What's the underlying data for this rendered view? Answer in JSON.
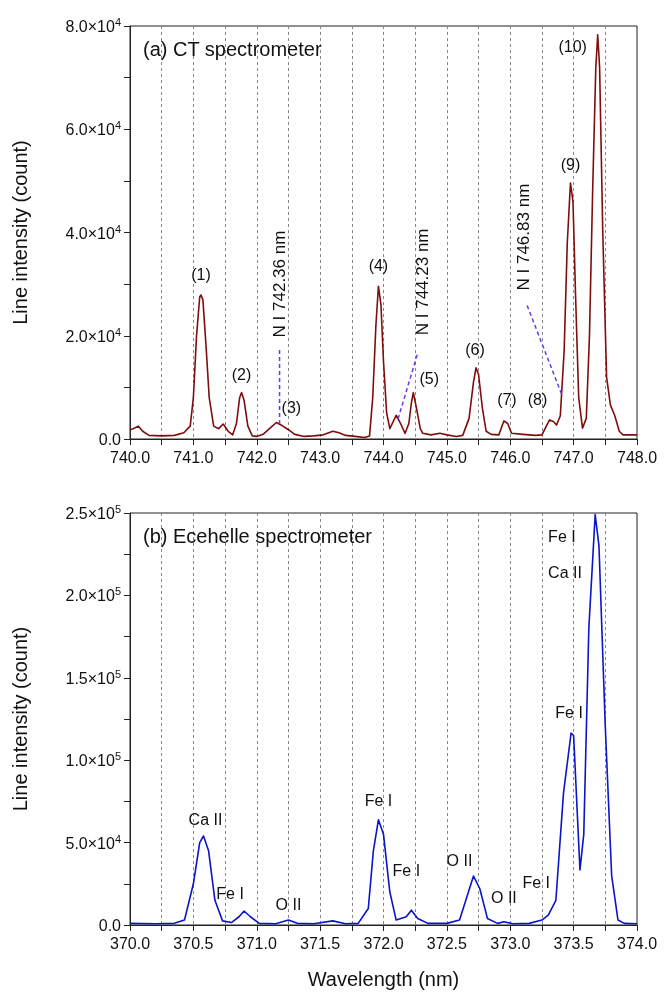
{
  "chart_data": [
    {
      "type": "line",
      "title": "(a) CT spectrometer",
      "ylabel": "Line intensity (count)",
      "grid": "x",
      "xlim": [
        740,
        748
      ],
      "ylim": [
        0,
        80000
      ],
      "xticks": [
        {
          "value": 740,
          "label": "740.0"
        },
        {
          "value": 740.5,
          "label": null
        },
        {
          "value": 741,
          "label": "741.0"
        },
        {
          "value": 741.5,
          "label": null
        },
        {
          "value": 742,
          "label": "742.0"
        },
        {
          "value": 742.5,
          "label": null
        },
        {
          "value": 743,
          "label": "743.0"
        },
        {
          "value": 743.5,
          "label": null
        },
        {
          "value": 744,
          "label": "744.0"
        },
        {
          "value": 744.5,
          "label": null
        },
        {
          "value": 745,
          "label": "745.0"
        },
        {
          "value": 745.5,
          "label": null
        },
        {
          "value": 746,
          "label": "746.0"
        },
        {
          "value": 746.5,
          "label": null
        },
        {
          "value": 747,
          "label": "747.0"
        },
        {
          "value": 747.5,
          "label": null
        },
        {
          "value": 748,
          "label": "748.0"
        }
      ],
      "yticks": [
        {
          "value": 0,
          "label": "0.0"
        },
        {
          "value": 10000,
          "label": null
        },
        {
          "value": 20000,
          "label": "2.0×10$^{4}$"
        },
        {
          "value": 30000,
          "label": null
        },
        {
          "value": 40000,
          "label": "4.0×10$^{4}$"
        },
        {
          "value": 50000,
          "label": null
        },
        {
          "value": 60000,
          "label": "6.0×10$^{4}$"
        },
        {
          "value": 70000,
          "label": null
        },
        {
          "value": 80000,
          "label": "8.0×10$^{4}$"
        }
      ],
      "x": [
        740.0,
        740.05,
        740.13,
        740.2,
        740.3,
        740.5,
        740.7,
        740.85,
        740.95,
        741.0,
        741.05,
        741.1,
        741.12,
        741.15,
        741.2,
        741.25,
        741.32,
        741.4,
        741.47,
        741.55,
        741.62,
        741.68,
        741.73,
        741.76,
        741.8,
        741.86,
        741.93,
        742.0,
        742.1,
        742.2,
        742.31,
        742.4,
        742.5,
        742.6,
        742.75,
        742.9,
        743.05,
        743.2,
        743.3,
        743.4,
        743.55,
        743.7,
        743.78,
        743.83,
        743.88,
        743.92,
        743.96,
        744.0,
        744.05,
        744.1,
        744.2,
        744.27,
        744.34,
        744.4,
        744.44,
        744.47,
        744.52,
        744.58,
        744.62,
        744.75,
        744.89,
        745.0,
        745.15,
        745.25,
        745.35,
        745.42,
        745.46,
        745.5,
        745.56,
        745.62,
        745.7,
        745.82,
        745.87,
        745.9,
        745.96,
        746.02,
        746.2,
        746.4,
        746.5,
        746.57,
        746.62,
        746.68,
        746.73,
        746.79,
        746.85,
        746.9,
        746.95,
        746.99,
        747.03,
        747.08,
        747.14,
        747.2,
        747.25,
        747.3,
        747.35,
        747.38,
        747.41,
        747.46,
        747.52,
        747.58,
        747.65,
        747.72,
        747.78,
        747.9,
        748.0
      ],
      "series": [
        {
          "color": "#7f0d0d",
          "values": [
            1800,
            2000,
            2500,
            1500,
            700,
            600,
            700,
            1200,
            2500,
            8000,
            20000,
            27500,
            27900,
            27000,
            18000,
            8000,
            2500,
            2000,
            2900,
            1500,
            800,
            3000,
            8000,
            9000,
            7500,
            2500,
            600,
            500,
            900,
            2000,
            3200,
            2600,
            1800,
            900,
            500,
            600,
            800,
            1500,
            1200,
            700,
            500,
            300,
            600,
            8000,
            22000,
            29600,
            26000,
            15000,
            5000,
            2000,
            4600,
            3000,
            1100,
            3000,
            7000,
            9000,
            6000,
            2000,
            1100,
            800,
            1100,
            800,
            500,
            700,
            4000,
            11000,
            13800,
            12500,
            6000,
            1500,
            900,
            800,
            2500,
            3500,
            3000,
            1100,
            900,
            700,
            800,
            2500,
            3700,
            3400,
            2700,
            4500,
            17000,
            38000,
            49600,
            46000,
            28000,
            8000,
            2100,
            4000,
            20000,
            48000,
            72000,
            78300,
            72000,
            40000,
            12000,
            6600,
            4500,
            1500,
            800,
            800,
            800
          ]
        }
      ],
      "annotations": [
        {
          "text": "(1)",
          "x": 741.12,
          "y": 27900
        },
        {
          "text": "(2)",
          "x": 741.76,
          "y": 9000
        },
        {
          "text": "(3)",
          "x": 742.31,
          "y": 3200
        },
        {
          "text": "(4)",
          "x": 743.92,
          "y": 29600
        },
        {
          "text": "(5)",
          "x": 744.47,
          "y": 9000
        },
        {
          "text": "(6)",
          "x": 745.46,
          "y": 13800
        },
        {
          "text": "(7)",
          "x": 745.9,
          "y": 3500
        },
        {
          "text": "(8)",
          "x": 746.62,
          "y": 3700
        },
        {
          "text": "(9)",
          "x": 746.95,
          "y": 49600
        },
        {
          "text": "(10)",
          "x": 747.38,
          "y": 78300
        },
        {
          "text": "N I 742.36 nm",
          "x": 742.36,
          "y": 2900
        },
        {
          "text": "N I 744.23 nm",
          "x": 744.23,
          "y": 3900
        },
        {
          "text": "N I 746.83 nm",
          "x": 746.81,
          "y": 8700
        }
      ]
    },
    {
      "type": "line",
      "title": "(b) Ecehelle spectrometer",
      "xlabel": "Wavelength (nm)",
      "ylabel": "Line intensity (count)",
      "grid": "x",
      "xlim": [
        370,
        374
      ],
      "ylim": [
        0,
        250000
      ],
      "xticks": [
        {
          "value": 370,
          "label": "370.0"
        },
        {
          "value": 370.25,
          "label": null
        },
        {
          "value": 370.5,
          "label": "370.5"
        },
        {
          "value": 370.75,
          "label": null
        },
        {
          "value": 371,
          "label": "371.0"
        },
        {
          "value": 371.25,
          "label": null
        },
        {
          "value": 371.5,
          "label": "371.5"
        },
        {
          "value": 371.75,
          "label": null
        },
        {
          "value": 372,
          "label": "372.0"
        },
        {
          "value": 372.25,
          "label": null
        },
        {
          "value": 372.5,
          "label": "372.5"
        },
        {
          "value": 372.75,
          "label": null
        },
        {
          "value": 373,
          "label": "373.0"
        },
        {
          "value": 373.25,
          "label": null
        },
        {
          "value": 373.5,
          "label": "373.5"
        },
        {
          "value": 373.75,
          "label": null
        },
        {
          "value": 374,
          "label": "374.0"
        }
      ],
      "yticks": [
        {
          "value": 0,
          "label": "0.0"
        },
        {
          "value": 25000,
          "label": null
        },
        {
          "value": 50000,
          "label": "5.0×10$^{4}$"
        },
        {
          "value": 75000,
          "label": null
        },
        {
          "value": 100000,
          "label": "1.0×10$^{5}$"
        },
        {
          "value": 125000,
          "label": null
        },
        {
          "value": 150000,
          "label": "1.5×10$^{5}$"
        },
        {
          "value": 175000,
          "label": null
        },
        {
          "value": 200000,
          "label": "2.0×10$^{5}$"
        },
        {
          "value": 225000,
          "label": null
        },
        {
          "value": 250000,
          "label": "2.5×10$^{5}$"
        }
      ],
      "x": [
        370.0,
        370.2,
        370.35,
        370.43,
        370.5,
        370.55,
        370.58,
        370.62,
        370.67,
        370.73,
        370.8,
        370.86,
        370.9,
        370.95,
        371.02,
        371.15,
        371.25,
        371.32,
        371.45,
        371.6,
        371.7,
        371.8,
        371.88,
        371.92,
        371.96,
        372.0,
        372.05,
        372.1,
        372.18,
        372.22,
        372.27,
        372.35,
        372.5,
        372.6,
        372.67,
        372.71,
        372.76,
        372.82,
        372.9,
        372.95,
        373.02,
        373.15,
        373.25,
        373.3,
        373.36,
        373.42,
        373.48,
        373.5,
        373.55,
        373.58,
        373.62,
        373.67,
        373.7,
        373.75,
        373.8,
        373.85,
        373.9,
        374.0
      ],
      "series": [
        {
          "color": "#0a14c8",
          "values": [
            1000,
            800,
            1000,
            3000,
            25000,
            50000,
            54000,
            45000,
            15000,
            2500,
            1500,
            5000,
            8500,
            5000,
            1000,
            800,
            3000,
            1000,
            800,
            2500,
            800,
            1000,
            10000,
            45000,
            63800,
            55000,
            20000,
            3000,
            5000,
            9000,
            4000,
            1000,
            1000,
            3000,
            20000,
            29700,
            22000,
            4000,
            1000,
            2000,
            800,
            1000,
            3000,
            6000,
            15000,
            80000,
            116400,
            115000,
            33400,
            55000,
            180000,
            249000,
            230000,
            120000,
            30000,
            3000,
            1000,
            800
          ]
        }
      ],
      "annotations": [
        {
          "text": "Ca II",
          "x": 370.58,
          "y": 54000
        },
        {
          "text": "Fe I",
          "x": 370.9,
          "y": 8500
        },
        {
          "text": "O II",
          "x": 371.25,
          "y": 3000
        },
        {
          "text": "Fe I",
          "x": 371.96,
          "y": 63800
        },
        {
          "text": "Fe I",
          "x": 372.22,
          "y": 9000
        },
        {
          "text": "O II",
          "x": 372.71,
          "y": 29700
        },
        {
          "text": "O II",
          "x": 372.95,
          "y": 2000
        },
        {
          "text": "Fe I",
          "x": 373.3,
          "y": 6000
        },
        {
          "text": "Fe I",
          "x": 373.48,
          "y": 116400
        },
        {
          "text": "Fe I",
          "x": 373.66,
          "y": 236000
        },
        {
          "text": "Ca II",
          "x": 373.645,
          "y": 214000
        }
      ]
    }
  ]
}
